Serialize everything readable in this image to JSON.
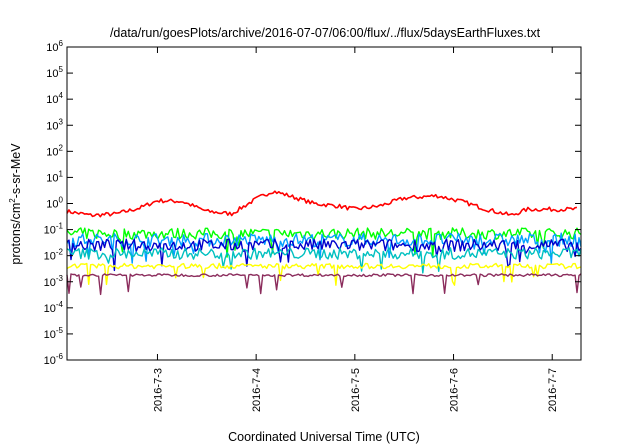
{
  "chart_data": {
    "type": "line",
    "title": "/data/run/goesPlots/archive/2016-07-07/06:00/flux/../flux/5daysEarthFluxes.txt",
    "xlabel": "Coordinated Universal Time (UTC)",
    "ylabel": {
      "base": "protons/cm",
      "sup": "2",
      "rest": "-s-sr-MeV"
    },
    "y_scale": "log",
    "ylim": [
      1e-06,
      1000000.0
    ],
    "y_ticks": [
      {
        "base": "10",
        "exp": "-6"
      },
      {
        "base": "10",
        "exp": "-5"
      },
      {
        "base": "10",
        "exp": "-4"
      },
      {
        "base": "10",
        "exp": "-3"
      },
      {
        "base": "10",
        "exp": "-2"
      },
      {
        "base": "10",
        "exp": "-1"
      },
      {
        "base": "10",
        "exp": "0"
      },
      {
        "base": "10",
        "exp": "1"
      },
      {
        "base": "10",
        "exp": "2"
      },
      {
        "base": "10",
        "exp": "3"
      },
      {
        "base": "10",
        "exp": "4"
      },
      {
        "base": "10",
        "exp": "5"
      },
      {
        "base": "10",
        "exp": "6"
      }
    ],
    "xlim": [
      "2016-07-02 02:00",
      "2016-07-07 07:00"
    ],
    "x_ticks": [
      "2016-7-3",
      "2016-7-4",
      "2016-7-5",
      "2016-7-6",
      "2016-7-7"
    ],
    "grid": false,
    "legend": "none",
    "series": [
      {
        "color": "#ff0000",
        "points": [
          [
            "2016-07-02 02:00",
            0.5
          ],
          [
            "2016-07-02 08:00",
            0.35
          ],
          [
            "2016-07-02 14:00",
            0.4
          ],
          [
            "2016-07-02 20:00",
            0.7
          ],
          [
            "2016-07-03 00:00",
            1.3
          ],
          [
            "2016-07-03 06:00",
            1.2
          ],
          [
            "2016-07-03 12:00",
            0.5
          ],
          [
            "2016-07-03 18:00",
            0.4
          ],
          [
            "2016-07-04 00:00",
            1.5
          ],
          [
            "2016-07-04 04:00",
            3.0
          ],
          [
            "2016-07-04 08:00",
            2.0
          ],
          [
            "2016-07-04 14:00",
            1.0
          ],
          [
            "2016-07-04 20:00",
            0.8
          ],
          [
            "2016-07-05 00:00",
            0.6
          ],
          [
            "2016-07-05 06:00",
            0.8
          ],
          [
            "2016-07-05 12:00",
            1.6
          ],
          [
            "2016-07-05 20:00",
            2.0
          ],
          [
            "2016-07-06 02:00",
            1.2
          ],
          [
            "2016-07-06 08:00",
            0.6
          ],
          [
            "2016-07-06 14:00",
            0.35
          ],
          [
            "2016-07-06 18:00",
            0.6
          ],
          [
            "2016-07-07 00:00",
            0.6
          ],
          [
            "2016-07-07 06:00",
            0.6
          ]
        ]
      },
      {
        "color": "#00ff00",
        "points": [
          [
            "2016-07-02 02:00",
            0.07
          ],
          [
            "2016-07-07 07:00",
            0.07
          ]
        ]
      },
      {
        "color": "#00a0ff",
        "points": [
          [
            "2016-07-02 02:00",
            0.04
          ],
          [
            "2016-07-07 07:00",
            0.04
          ]
        ]
      },
      {
        "color": "#0000cc",
        "points": [
          [
            "2016-07-02 02:00",
            0.025
          ],
          [
            "2016-07-07 07:00",
            0.025
          ]
        ]
      },
      {
        "color": "#00c0c0",
        "points": [
          [
            "2016-07-02 02:00",
            0.012
          ],
          [
            "2016-07-07 07:00",
            0.012
          ]
        ]
      },
      {
        "color": "#ffff00",
        "points": [
          [
            "2016-07-02 02:00",
            0.004
          ],
          [
            "2016-07-07 07:00",
            0.004
          ]
        ]
      },
      {
        "color": "#8b2c5c",
        "points": [
          [
            "2016-07-02 02:00",
            0.0018
          ],
          [
            "2016-07-07 07:00",
            0.0018
          ]
        ]
      }
    ]
  }
}
